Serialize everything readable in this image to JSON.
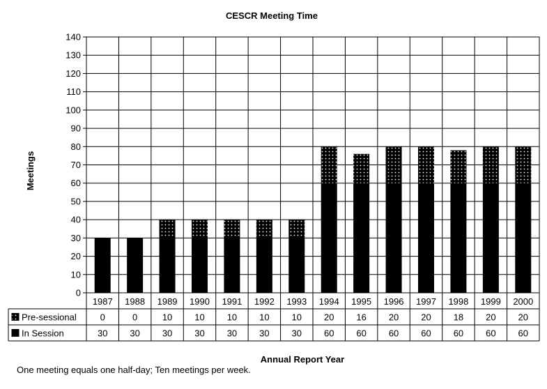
{
  "chart_data": {
    "type": "bar",
    "stacked": true,
    "title": "CESCR Meeting Time",
    "xlabel": "Annual Report Year",
    "ylabel": "Meetings",
    "ylim": [
      0,
      140
    ],
    "ytick_step": 10,
    "grid": true,
    "categories": [
      "1987",
      "1988",
      "1989",
      "1990",
      "1991",
      "1992",
      "1993",
      "1994",
      "1995",
      "1996",
      "1997",
      "1998",
      "1999",
      "2000"
    ],
    "series": [
      {
        "name": "In Session",
        "values": [
          30,
          30,
          30,
          30,
          30,
          30,
          30,
          60,
          60,
          60,
          60,
          60,
          60,
          60
        ],
        "fill": "#000000"
      },
      {
        "name": "Pre-sessional",
        "values": [
          0,
          0,
          10,
          10,
          10,
          10,
          10,
          20,
          16,
          20,
          20,
          18,
          20,
          20
        ],
        "fill": "dotted"
      }
    ],
    "data_table": true,
    "footnote": "One meeting equals one half-day; Ten meetings per week."
  }
}
